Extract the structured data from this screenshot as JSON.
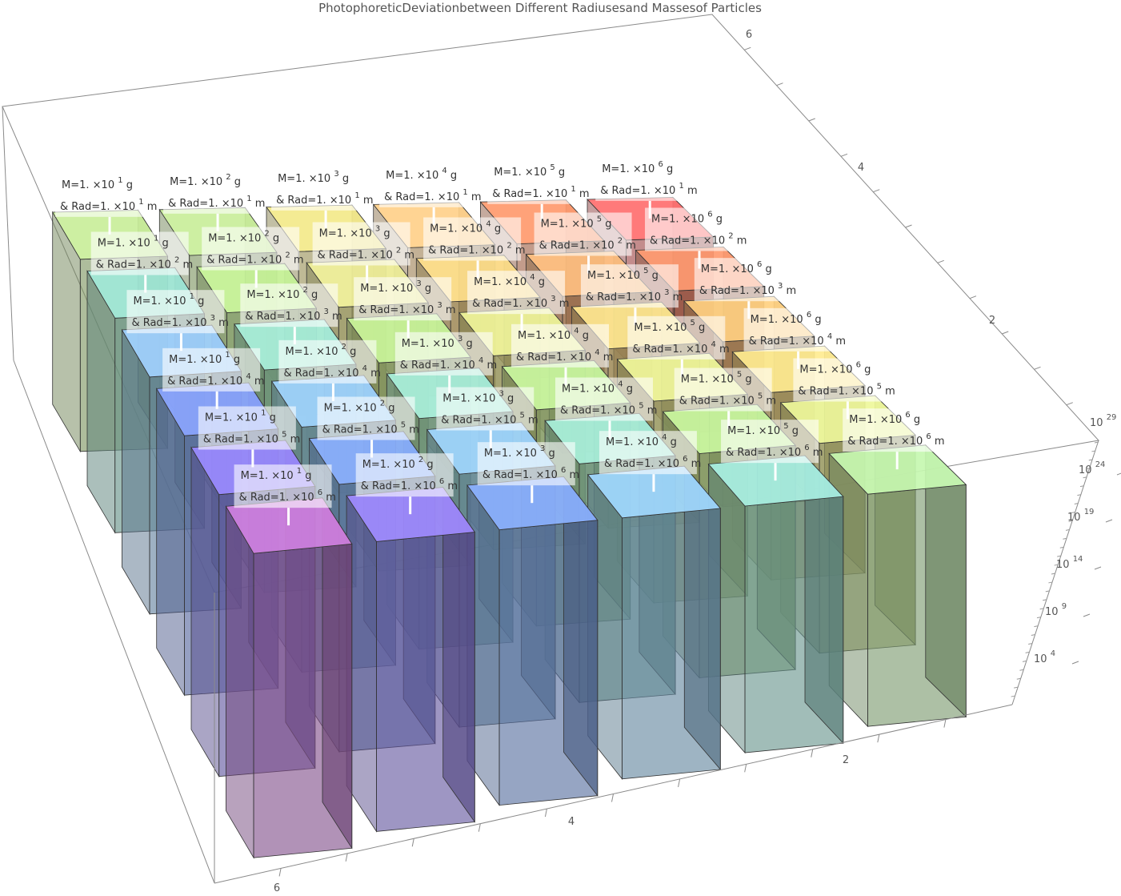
{
  "chart_data": {
    "type": "bar3d",
    "title": "PhotophoreticDeviationbetween Different Radiusesand Massesof Particles",
    "z_scale": "log",
    "z_ticks": [
      {
        "base": "10",
        "exp": "4"
      },
      {
        "base": "10",
        "exp": "9"
      },
      {
        "base": "10",
        "exp": "14"
      },
      {
        "base": "10",
        "exp": "19"
      },
      {
        "base": "10",
        "exp": "24"
      },
      {
        "base": "10",
        "exp": "29"
      }
    ],
    "x_ticks": [
      "2",
      "4",
      "6"
    ],
    "y_ticks": [
      "2",
      "4",
      "6"
    ],
    "mass_exponents": [
      "1",
      "2",
      "3",
      "4",
      "5",
      "6"
    ],
    "radius_exponents": [
      "1",
      "2",
      "3",
      "4",
      "5",
      "6"
    ],
    "label_parts": {
      "mass_prefix": "M=1. ×10",
      "mass_unit": "g",
      "rad_prefix": "& Rad=1. ×10",
      "rad_unit": "m"
    },
    "colors": {
      "row1": [
        "#c9ee9a",
        "#c9ee9a",
        "#f3e98a",
        "#ffd08a",
        "#ff9a6e",
        "#ff6f6f"
      ],
      "row2": [
        "#9fe8d8",
        "#c9f59a",
        "#f0f09a",
        "#ffe08a",
        "#ffc080",
        "#ff9a70"
      ],
      "row3": [
        "#9fd0ff",
        "#a8f0dc",
        "#c9f59a",
        "#f0f59a",
        "#ffe890",
        "#ffd080"
      ],
      "row4": [
        "#8aa4ff",
        "#9fd4ff",
        "#a8f0dc",
        "#c9f7a0",
        "#f0f79a",
        "#ffec90"
      ],
      "row5": [
        "#9a8aff",
        "#8ab0ff",
        "#9fd6ff",
        "#a8f0dc",
        "#c9f7a0",
        "#eef79a"
      ],
      "row6": [
        "#d080e0",
        "#a08aff",
        "#8ab0ff",
        "#9fd8ff",
        "#a8f0e4",
        "#c6f7b0"
      ]
    }
  }
}
